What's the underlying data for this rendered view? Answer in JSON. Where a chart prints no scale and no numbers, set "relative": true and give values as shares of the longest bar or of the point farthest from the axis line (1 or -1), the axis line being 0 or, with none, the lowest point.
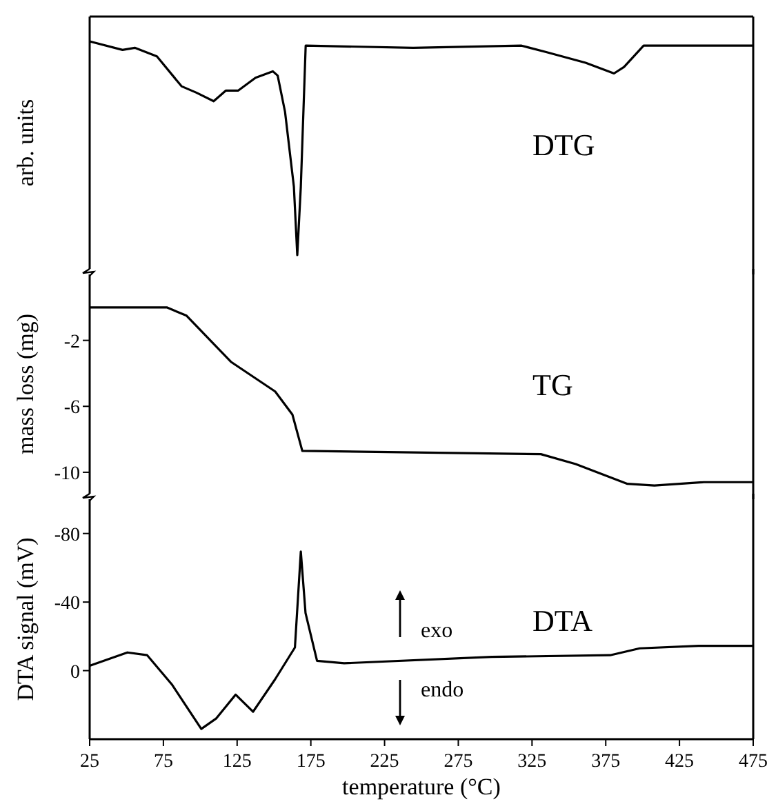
{
  "chart_data": [
    {
      "type": "line",
      "relative": true,
      "ylabel": "arb. units",
      "annotations": [
        "DTG"
      ],
      "xlim": [
        25,
        475
      ],
      "xticks": [
        25,
        75,
        125,
        175,
        225,
        275,
        325,
        375,
        425,
        475
      ],
      "tick_labels": false,
      "series": [
        {
          "color": "#000000",
          "x": [
            25,
            47.3,
            55.6,
            70.6,
            87.3,
            97.4,
            109.1,
            117.4,
            125.8,
            137.5,
            149.2,
            152.5,
            157.5,
            163.5,
            165.8,
            168.2,
            171.5,
            244.4,
            317.9,
            334.6,
            361.3,
            380.6,
            387.4,
            400.7,
            444.6,
            475
          ],
          "values": [
            1,
            0.96,
            0.97,
            0.93,
            0.79,
            0.76,
            0.72,
            0.77,
            0.77,
            0.83,
            0.86,
            0.84,
            0.67,
            0.32,
            0,
            0.32,
            0.98,
            0.97,
            0.98,
            0.95,
            0.9,
            0.85,
            0.88,
            0.98,
            0.98,
            0.98
          ]
        }
      ]
    },
    {
      "type": "line",
      "ylabel": "mass loss (mg)",
      "annotations": [
        "TG"
      ],
      "xlim": [
        25,
        475
      ],
      "xticks": [
        25,
        75,
        125,
        175,
        225,
        275,
        325,
        375,
        425,
        475
      ],
      "ylim": [
        -11.3,
        2
      ],
      "yticks": [
        -2,
        -6,
        -10
      ],
      "tick_labels": "y",
      "series": [
        {
          "color": "#000000",
          "x": [
            25,
            77.3,
            90.7,
            120.8,
            150.8,
            162.5,
            169.2,
            331,
            354.6,
            389.7,
            408,
            441.5,
            475
          ],
          "values": [
            0,
            0,
            -0.5,
            -3.3,
            -5.1,
            -6.5,
            -8.7,
            -8.9,
            -9.5,
            -10.7,
            -10.8,
            -10.6,
            -10.6
          ]
        }
      ]
    },
    {
      "type": "line",
      "ylabel": "DTA signal (mV)",
      "xlabel": "temperature (°C)",
      "annotations": [
        "DTA",
        "exo",
        "endo"
      ],
      "xlim": [
        25,
        475
      ],
      "xticks": [
        25,
        75,
        125,
        175,
        225,
        275,
        325,
        375,
        425,
        475
      ],
      "ylim": [
        40,
        -100
      ],
      "yticks": [
        -80,
        -40,
        0
      ],
      "series": [
        {
          "color": "#000000",
          "x": [
            25,
            50.6,
            64,
            80.7,
            100.7,
            110.7,
            124,
            135.8,
            150.8,
            164.2,
            168.2,
            171.4,
            179.2,
            197.6,
            297.7,
            378,
            398,
            438,
            475
          ],
          "values": [
            -2.8,
            -10.6,
            -9,
            8,
            34,
            28,
            14,
            24,
            5,
            -13.5,
            -69.5,
            -33.6,
            -5.7,
            -4.3,
            -8,
            -9,
            -13,
            -14.5,
            -14.5
          ]
        }
      ]
    }
  ]
}
